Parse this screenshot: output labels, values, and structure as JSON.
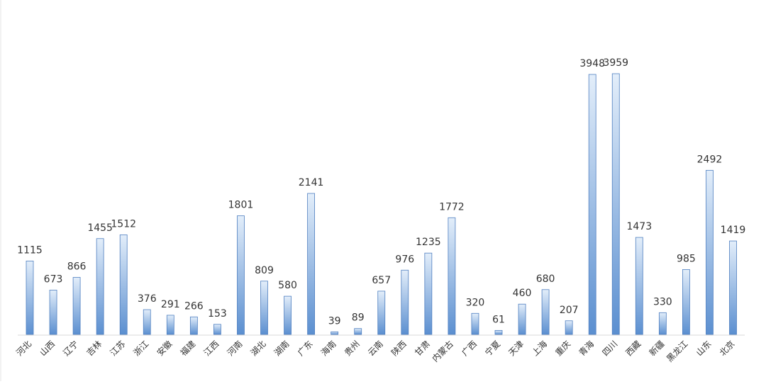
{
  "chart_data": {
    "type": "bar",
    "categories": [
      "河北",
      "山西",
      "辽宁",
      "吉林",
      "江苏",
      "浙江",
      "安徽",
      "福建",
      "江西",
      "河南",
      "湖北",
      "湖南",
      "广东",
      "海南",
      "贵州",
      "云南",
      "陕西",
      "甘肃",
      "内蒙古",
      "广西",
      "宁夏",
      "天津",
      "上海",
      "重庆",
      "青海",
      "四川",
      "西藏",
      "新疆",
      "黑龙江",
      "山东",
      "北京"
    ],
    "values": [
      1115,
      673,
      866,
      1455,
      1512,
      376,
      291,
      266,
      153,
      1801,
      809,
      580,
      2141,
      39,
      89,
      657,
      976,
      1235,
      1772,
      320,
      61,
      460,
      680,
      207,
      3948,
      3959,
      1473,
      330,
      985,
      2492,
      1419
    ],
    "ylim": [
      0,
      4000
    ],
    "grid": false,
    "legend": "none",
    "colors": {
      "bar_top": "#e3eefa",
      "bar_bottom": "#5b8fd0",
      "bar_stroke": "#4f7fc0",
      "axis": "#d9d9d9"
    }
  }
}
